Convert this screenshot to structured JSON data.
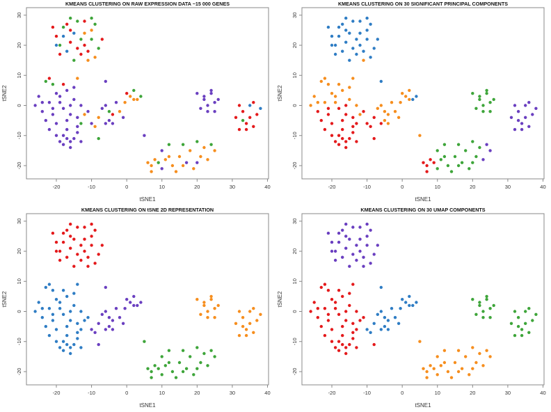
{
  "chart_data": [
    {
      "type": "scatter",
      "title": "KMEANS CLUSTERING ON RAW EXPRESSION DATA ~15 000 GENES",
      "xlabel": "tSNE1",
      "ylabel": "tSNE2",
      "label_column": 0
    },
    {
      "type": "scatter",
      "title": "KMEANS CLUSTERING ON 30 SIGNIFICANT PRINCIPAL COMPONENTS",
      "xlabel": "tSNE1",
      "ylabel": "tSNE2",
      "label_column": 1
    },
    {
      "type": "scatter",
      "title": "KMEANS CLUSTERING ON tSNE 2D REPRESENTATION",
      "xlabel": "tSNE1",
      "ylabel": "tSNE2",
      "label_column": 2
    },
    {
      "type": "scatter",
      "title": "KMEANS CLUSTERING ON 30 UMAP COMPONENTS",
      "xlabel": "tSNE1",
      "ylabel": "tSNE2",
      "label_column": 3
    }
  ],
  "shared": {
    "xlim": [
      -28.5,
      40.3
    ],
    "ylim": [
      -24.4,
      32.5
    ],
    "xticks": [
      -20,
      -10,
      0,
      10,
      20,
      30,
      40
    ],
    "yticks": [
      -20,
      -10,
      0,
      10,
      20,
      30
    ],
    "grid": false,
    "cluster_colors": {
      "1": "#e41a1c",
      "2": "#2f7dc4",
      "3": "#3ea53a",
      "4": "#6a3fc0",
      "5": "#f68e1e"
    },
    "points_format": "[tSNE1, tSNE2, cluster_raw, cluster_pca, cluster_tsne, cluster_umap]",
    "points": [
      [
        -20,
        23,
        1,
        2,
        1,
        4
      ],
      [
        -18,
        26,
        3,
        2,
        1,
        4
      ],
      [
        -16,
        21,
        1,
        2,
        1,
        4
      ],
      [
        -14,
        28,
        3,
        2,
        1,
        4
      ],
      [
        -12,
        24,
        5,
        2,
        1,
        4
      ],
      [
        -10,
        22,
        3,
        2,
        1,
        4
      ],
      [
        -17,
        18,
        2,
        2,
        1,
        4
      ],
      [
        -13,
        17,
        1,
        2,
        1,
        4
      ],
      [
        -11,
        15,
        5,
        5,
        1,
        4
      ],
      [
        -15,
        24,
        2,
        2,
        1,
        4
      ],
      [
        -19,
        20,
        3,
        2,
        1,
        4
      ],
      [
        -9,
        27,
        3,
        2,
        1,
        4
      ],
      [
        -12,
        20,
        1,
        2,
        1,
        4
      ],
      [
        -16,
        29,
        3,
        2,
        1,
        4
      ],
      [
        -21,
        26,
        1,
        2,
        1,
        4
      ],
      [
        -14,
        19,
        1,
        2,
        1,
        4
      ],
      [
        -8,
        19,
        3,
        2,
        1,
        4
      ],
      [
        -10,
        25,
        5,
        2,
        1,
        4
      ],
      [
        -18,
        23,
        2,
        2,
        1,
        4
      ],
      [
        -13,
        22,
        3,
        2,
        1,
        4
      ],
      [
        -15,
        15,
        3,
        2,
        1,
        4
      ],
      [
        -11,
        18,
        1,
        2,
        1,
        4
      ],
      [
        -9,
        16,
        5,
        2,
        1,
        4
      ],
      [
        -17,
        27,
        1,
        2,
        1,
        4
      ],
      [
        -7,
        22,
        1,
        2,
        1,
        4
      ],
      [
        -20,
        20,
        2,
        2,
        1,
        4
      ],
      [
        -12,
        28,
        1,
        2,
        1,
        4
      ],
      [
        -16,
        25,
        1,
        2,
        1,
        4
      ],
      [
        -19,
        17,
        1,
        2,
        1,
        4
      ],
      [
        -10,
        29,
        3,
        2,
        1,
        4
      ],
      [
        -23,
        8,
        3,
        5,
        2,
        1
      ],
      [
        -21,
        7,
        3,
        5,
        2,
        1
      ],
      [
        -22,
        9,
        1,
        5,
        2,
        1
      ],
      [
        -25,
        3,
        4,
        5,
        2,
        1
      ],
      [
        -22,
        1,
        4,
        5,
        2,
        1
      ],
      [
        -19,
        3,
        4,
        5,
        2,
        1
      ],
      [
        -17,
        5,
        4,
        5,
        2,
        1
      ],
      [
        -15,
        2,
        4,
        5,
        2,
        1
      ],
      [
        -13,
        0,
        4,
        5,
        2,
        1
      ],
      [
        -24,
        -2,
        4,
        1,
        2,
        1
      ],
      [
        -21,
        -3,
        4,
        1,
        2,
        1
      ],
      [
        -18,
        -1,
        4,
        1,
        2,
        1
      ],
      [
        -16,
        -3,
        4,
        1,
        2,
        1
      ],
      [
        -14,
        -4,
        4,
        1,
        2,
        1
      ],
      [
        -20,
        -6,
        4,
        1,
        2,
        1
      ],
      [
        -23,
        -5,
        4,
        1,
        2,
        1
      ],
      [
        -17,
        -5,
        4,
        1,
        2,
        1
      ],
      [
        -12,
        -3,
        5,
        5,
        2,
        1
      ],
      [
        -19,
        1,
        4,
        5,
        2,
        1
      ],
      [
        -15,
        6,
        4,
        5,
        2,
        1
      ],
      [
        -26,
        0,
        4,
        5,
        2,
        1
      ],
      [
        -11,
        -2,
        4,
        1,
        2,
        1
      ],
      [
        -20,
        4,
        4,
        5,
        2,
        1
      ],
      [
        -13,
        -6,
        3,
        1,
        2,
        1
      ],
      [
        -22,
        -8,
        4,
        1,
        2,
        1
      ],
      [
        -14,
        9,
        5,
        5,
        2,
        1
      ],
      [
        -18,
        7,
        1,
        5,
        2,
        1
      ],
      [
        -24,
        1,
        4,
        5,
        2,
        1
      ],
      [
        -16,
        0,
        4,
        1,
        2,
        1
      ],
      [
        -21,
        -1,
        4,
        1,
        2,
        1
      ],
      [
        -18,
        -10,
        4,
        1,
        2,
        1
      ],
      [
        -16,
        -12,
        4,
        1,
        2,
        1
      ],
      [
        -14,
        -9,
        4,
        1,
        2,
        1
      ],
      [
        -17,
        -8,
        4,
        1,
        2,
        1
      ],
      [
        -19,
        -12,
        4,
        1,
        2,
        1
      ],
      [
        -15,
        -11,
        4,
        1,
        2,
        1
      ],
      [
        -13,
        -12,
        4,
        1,
        2,
        1
      ],
      [
        -16,
        -14,
        4,
        1,
        2,
        1
      ],
      [
        -20,
        -10,
        4,
        1,
        2,
        1
      ],
      [
        -14,
        -7,
        4,
        1,
        2,
        1
      ],
      [
        -18,
        -13,
        4,
        1,
        2,
        1
      ],
      [
        -17,
        -11,
        4,
        1,
        2,
        1
      ],
      [
        -10,
        -6,
        4,
        1,
        4,
        2
      ],
      [
        -8,
        -4,
        5,
        1,
        4,
        2
      ],
      [
        -7,
        -1,
        4,
        5,
        4,
        2
      ],
      [
        -5,
        -5,
        4,
        5,
        4,
        2
      ],
      [
        -4,
        -3,
        1,
        5,
        4,
        2
      ],
      [
        -3,
        1,
        4,
        5,
        4,
        2
      ],
      [
        -6,
        0,
        4,
        5,
        4,
        2
      ],
      [
        -2,
        -2,
        5,
        5,
        4,
        2
      ],
      [
        -1,
        -4,
        4,
        5,
        4,
        2
      ],
      [
        -9,
        -7,
        5,
        1,
        4,
        2
      ],
      [
        -6,
        -6,
        4,
        1,
        4,
        2
      ],
      [
        -5,
        -2,
        3,
        5,
        4,
        2
      ],
      [
        -8,
        -11,
        3,
        1,
        4,
        1
      ],
      [
        -6,
        8,
        4,
        2,
        4,
        2
      ],
      [
        -4,
        -6,
        4,
        5,
        4,
        2
      ],
      [
        0,
        4,
        1,
        5,
        4,
        2
      ],
      [
        1,
        3,
        5,
        5,
        4,
        2
      ],
      [
        2,
        5,
        3,
        5,
        4,
        2
      ],
      [
        3,
        2,
        5,
        2,
        4,
        2
      ],
      [
        4,
        3,
        3,
        2,
        4,
        2
      ],
      [
        -0.5,
        1,
        5,
        5,
        4,
        2
      ],
      [
        2,
        2,
        5,
        5,
        4,
        2
      ],
      [
        5,
        -10,
        4,
        5,
        3,
        5
      ],
      [
        20,
        4,
        4,
        3,
        5,
        3
      ],
      [
        22,
        2,
        4,
        3,
        5,
        3
      ],
      [
        24,
        4,
        4,
        3,
        5,
        3
      ],
      [
        23,
        0,
        4,
        3,
        5,
        3
      ],
      [
        25,
        -2,
        4,
        3,
        5,
        3
      ],
      [
        26,
        2,
        4,
        3,
        5,
        3
      ],
      [
        21,
        -1,
        4,
        3,
        5,
        3
      ],
      [
        24,
        5,
        4,
        3,
        5,
        3
      ],
      [
        22,
        3,
        4,
        3,
        5,
        3
      ],
      [
        25,
        1,
        4,
        3,
        5,
        3
      ],
      [
        23,
        -2,
        4,
        3,
        5,
        3
      ],
      [
        31,
        -4,
        1,
        4,
        5,
        3
      ],
      [
        33,
        -2,
        1,
        4,
        5,
        3
      ],
      [
        35,
        0,
        2,
        4,
        5,
        3
      ],
      [
        37,
        -3,
        1,
        4,
        5,
        3
      ],
      [
        34,
        -6,
        1,
        4,
        5,
        3
      ],
      [
        32,
        -8,
        1,
        4,
        5,
        3
      ],
      [
        36,
        -7,
        1,
        4,
        5,
        3
      ],
      [
        38,
        -1,
        2,
        4,
        5,
        3
      ],
      [
        33,
        -5,
        3,
        4,
        5,
        3
      ],
      [
        35,
        -4,
        1,
        4,
        5,
        3
      ],
      [
        36,
        1,
        1,
        4,
        5,
        3
      ],
      [
        32,
        0,
        1,
        4,
        5,
        3
      ],
      [
        34,
        -8,
        1,
        4,
        5,
        3
      ],
      [
        6,
        -19,
        5,
        1,
        3,
        5
      ],
      [
        7,
        -20,
        5,
        1,
        3,
        5
      ],
      [
        8,
        -18,
        5,
        1,
        3,
        5
      ],
      [
        7,
        -22,
        5,
        1,
        3,
        5
      ],
      [
        9,
        -19,
        3,
        1,
        3,
        5
      ],
      [
        10,
        -15,
        4,
        3,
        3,
        5
      ],
      [
        11,
        -18,
        5,
        3,
        3,
        5
      ],
      [
        12,
        -13,
        3,
        3,
        3,
        5
      ],
      [
        13,
        -20,
        5,
        3,
        3,
        5
      ],
      [
        15,
        -17,
        5,
        3,
        3,
        5
      ],
      [
        14,
        -22,
        5,
        3,
        3,
        5
      ],
      [
        16,
        -13,
        3,
        3,
        3,
        5
      ],
      [
        17,
        -19,
        4,
        3,
        3,
        5
      ],
      [
        18,
        -15,
        5,
        3,
        3,
        5
      ],
      [
        19,
        -21,
        5,
        3,
        3,
        5
      ],
      [
        20,
        -12,
        3,
        3,
        3,
        5
      ],
      [
        21,
        -17,
        5,
        3,
        3,
        5
      ],
      [
        22,
        -14,
        5,
        3,
        3,
        5
      ],
      [
        23,
        -18,
        5,
        4,
        3,
        5
      ],
      [
        24,
        -13,
        3,
        4,
        3,
        5
      ],
      [
        25,
        -15,
        5,
        4,
        3,
        5
      ],
      [
        12,
        -17,
        5,
        3,
        3,
        5
      ],
      [
        10,
        -21,
        4,
        3,
        3,
        5
      ],
      [
        20,
        -19,
        4,
        3,
        3,
        5
      ],
      [
        16,
        -20,
        5,
        3,
        3,
        5
      ]
    ]
  }
}
